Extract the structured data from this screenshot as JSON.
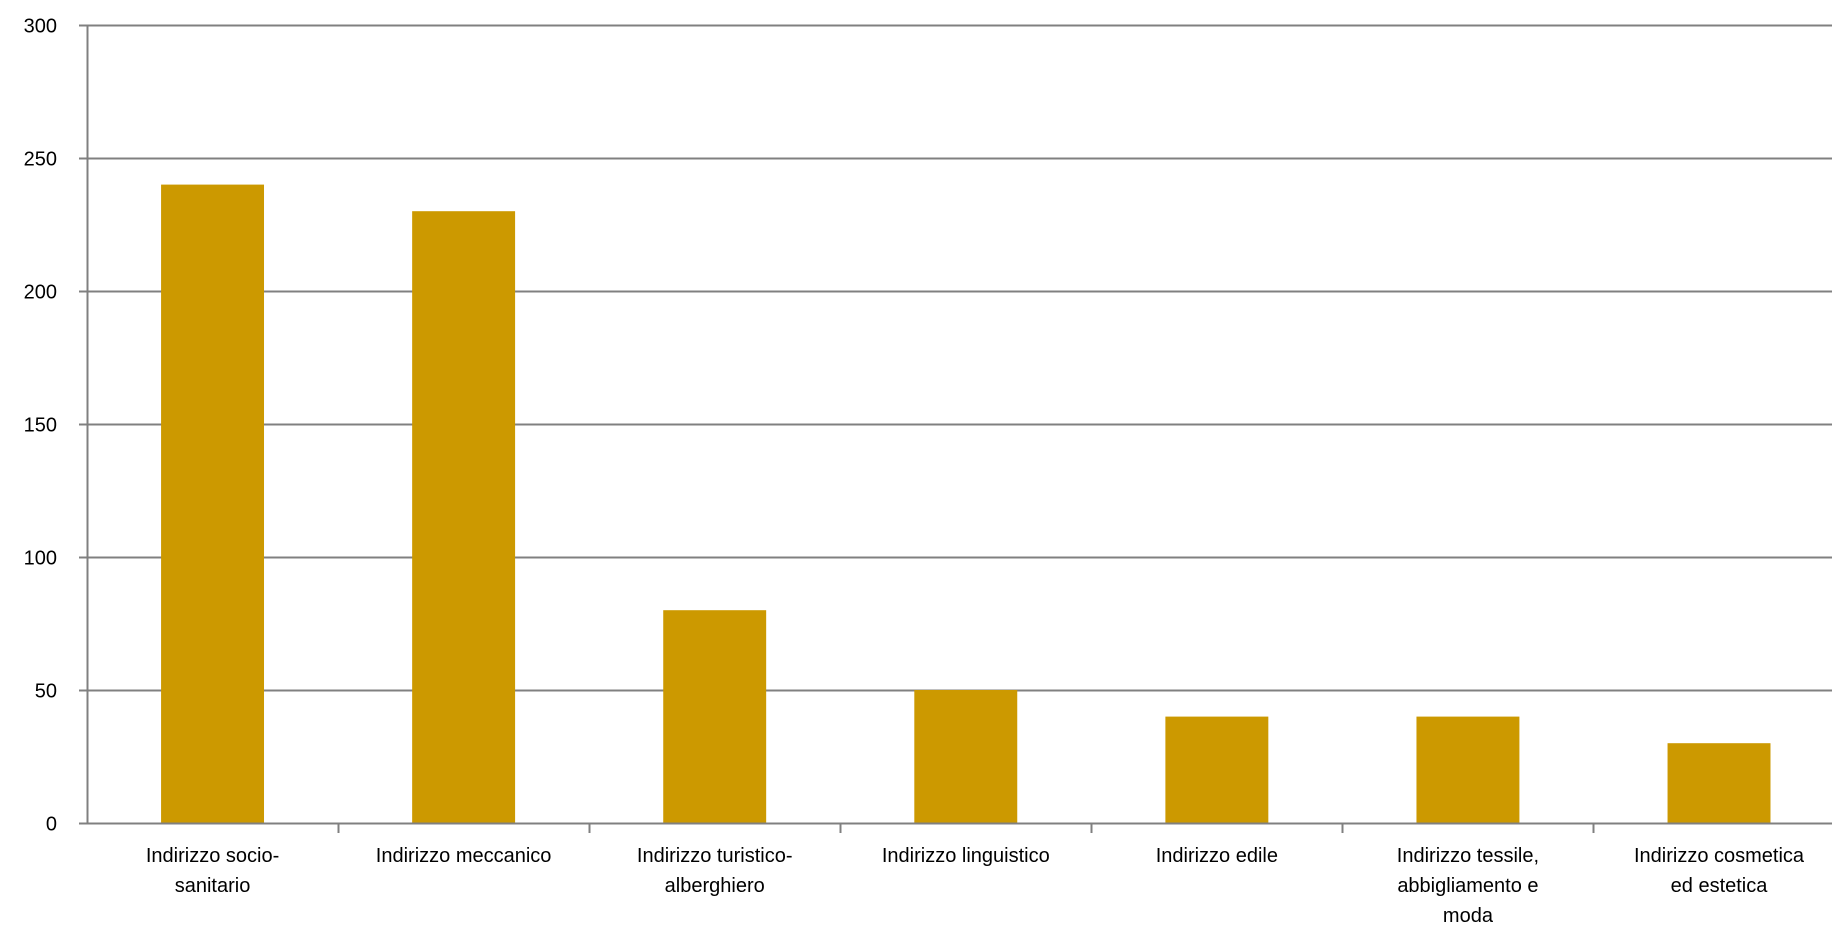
{
  "chart_data": {
    "type": "bar",
    "categories": [
      [
        "Indirizzo socio-",
        "sanitario"
      ],
      [
        "Indirizzo meccanico"
      ],
      [
        "Indirizzo turistico-",
        "alberghiero"
      ],
      [
        "Indirizzo linguistico"
      ],
      [
        "Indirizzo edile"
      ],
      [
        "Indirizzo tessile,",
        "abbigliamento e",
        "moda"
      ],
      [
        "Indirizzo cosmetica",
        "ed estetica"
      ]
    ],
    "values": [
      240,
      230,
      80,
      50,
      40,
      40,
      30
    ],
    "ylim": [
      0,
      300
    ],
    "yticks": [
      "0",
      "50",
      "100",
      "150",
      "200",
      "250",
      "300"
    ],
    "grid": true,
    "bar_color": "#CC9900",
    "grid_color": "#808080"
  }
}
